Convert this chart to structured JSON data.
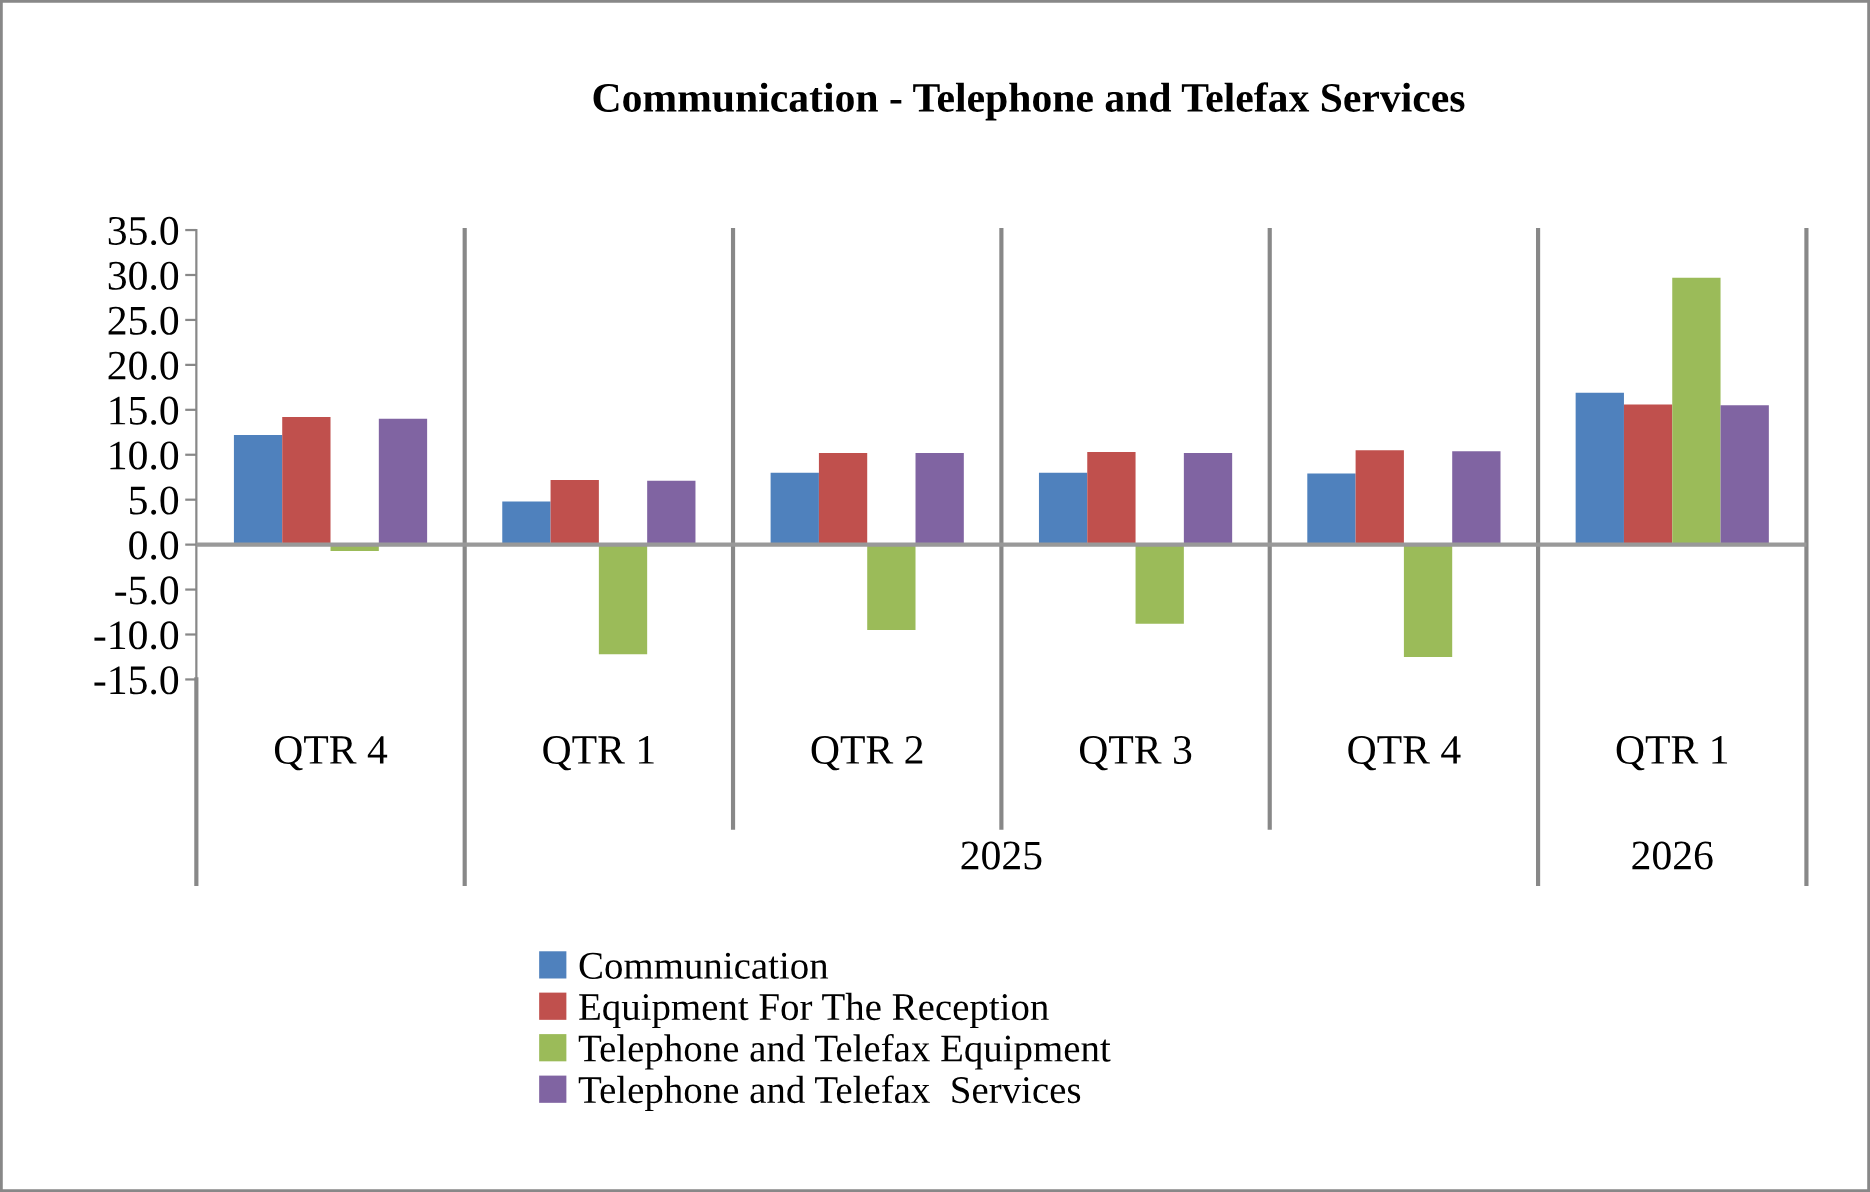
{
  "chart_data": {
    "type": "bar",
    "title": "Communication - Telephone and Telefax Services",
    "categories": [
      "QTR 4",
      "QTR 1",
      "QTR 2",
      "QTR 3",
      "QTR 4",
      "QTR 1"
    ],
    "series": [
      {
        "name": "Communication",
        "color": "#4f81bd",
        "values": [
          12.2,
          4.8,
          8.0,
          8.0,
          7.9,
          16.9
        ]
      },
      {
        "name": "Equipment For The Reception",
        "color": "#c0504d",
        "values": [
          14.2,
          7.2,
          10.2,
          10.3,
          10.5,
          15.6
        ]
      },
      {
        "name": "Telephone and Telefax Equipment",
        "color": "#9bbb59",
        "values": [
          -0.7,
          -12.2,
          -9.5,
          -8.8,
          -12.5,
          29.7
        ]
      },
      {
        "name": "Telephone and Telefax  Services",
        "color": "#8064a2",
        "values": [
          14.0,
          7.1,
          10.2,
          10.2,
          10.4,
          15.5
        ]
      }
    ],
    "annotations": [
      "2025",
      "2026"
    ],
    "ylim": [
      -15,
      35
    ],
    "yticks": [
      {
        "value": -15,
        "label": "-15.0"
      },
      {
        "value": -10,
        "label": "-10.0"
      },
      {
        "value": -5,
        "label": "-5.0"
      },
      {
        "value": 0,
        "label": "0.0"
      },
      {
        "value": 5,
        "label": "5.0"
      },
      {
        "value": 10,
        "label": "10.0"
      },
      {
        "value": 15,
        "label": "15.0"
      },
      {
        "value": 20,
        "label": "20.0"
      },
      {
        "value": 25,
        "label": "25.0"
      },
      {
        "value": 30,
        "label": "30.0"
      },
      {
        "value": 35,
        "label": "35.0"
      }
    ],
    "grid": "x",
    "legend": "bottom"
  }
}
